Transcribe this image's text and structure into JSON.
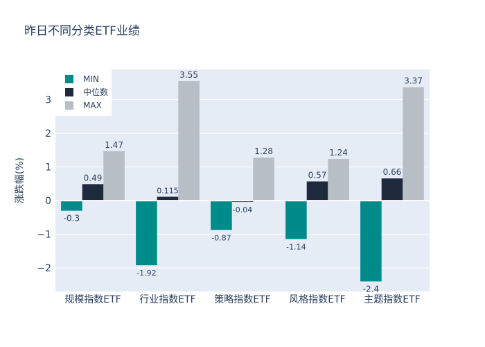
{
  "chart_data": {
    "type": "bar",
    "title": "昨日不同分类ETF业绩",
    "xlabel": "",
    "ylabel": "涨跌幅(%)",
    "categories": [
      "规模指数ETF",
      "行业指数ETF",
      "策略指数ETF",
      "风格指数ETF",
      "主题指数ETF"
    ],
    "series": [
      {
        "name": "MIN",
        "color": "#008b8b",
        "values": [
          -0.3,
          -1.92,
          -0.87,
          -1.14,
          -2.4
        ],
        "labels": [
          "-0.3",
          "-1.92",
          "-0.87",
          "-1.14",
          "-2.4"
        ]
      },
      {
        "name": "中位数",
        "color": "#1f2a3c",
        "values": [
          0.49,
          0.115,
          -0.04,
          0.57,
          0.66
        ],
        "labels": [
          "0.49",
          "0.115",
          "-0.04",
          "0.57",
          "0.66"
        ]
      },
      {
        "name": "MAX",
        "color": "#b8bec6",
        "values": [
          1.47,
          3.55,
          1.28,
          1.24,
          3.37
        ],
        "labels": [
          "1.47",
          "3.55",
          "1.28",
          "1.24",
          "3.37"
        ]
      }
    ],
    "ylim": [
      -2.7,
      3.9
    ],
    "yticks": [
      -2,
      -1,
      0,
      1,
      2,
      3
    ],
    "ytick_labels": [
      "−2",
      "−1",
      "0",
      "1",
      "2",
      "3"
    ],
    "grid": true,
    "legend_position": "top-left"
  }
}
